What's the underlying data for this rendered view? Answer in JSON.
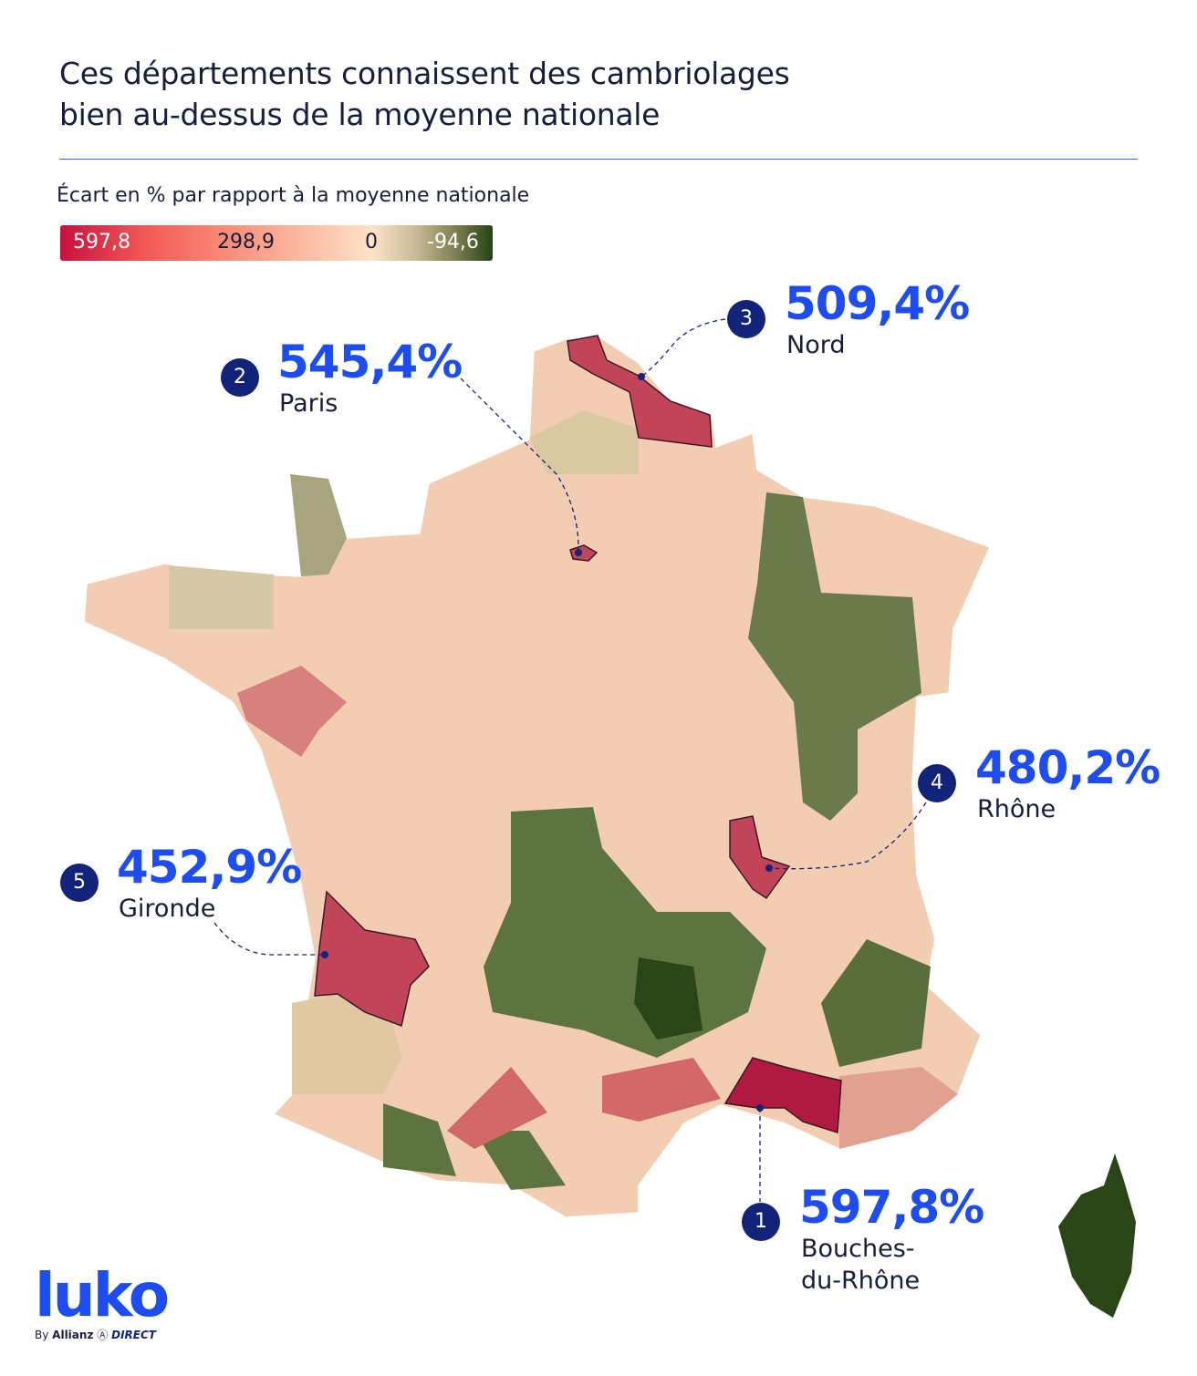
{
  "title": {
    "line1": "Ces départements connaissent des cambriolages",
    "line2": "bien au-dessus de la moyenne nationale"
  },
  "legend": {
    "title": "Écart en % par rapport à la moyenne nationale",
    "stops": [
      "597,8",
      "298,9",
      "0",
      "-94,6"
    ],
    "colors": {
      "max": "#c8103e",
      "mid": "#f25a55",
      "zero": "#fde3c8",
      "min": "#1f4512"
    }
  },
  "highlights": [
    {
      "rank": "1",
      "value": "597,8%",
      "name_line1": "Bouches-",
      "name_line2": "du-Rhône"
    },
    {
      "rank": "2",
      "value": "545,4%",
      "name_line1": "Paris"
    },
    {
      "rank": "3",
      "value": "509,4%",
      "name_line1": "Nord"
    },
    {
      "rank": "4",
      "value": "480,2%",
      "name_line1": "Rhône"
    },
    {
      "rank": "5",
      "value": "452,9%",
      "name_line1": "Gironde"
    }
  ],
  "logo": {
    "brand": "luko",
    "by": "By",
    "partner": "Allianz",
    "partner2": "DIRECT"
  }
}
